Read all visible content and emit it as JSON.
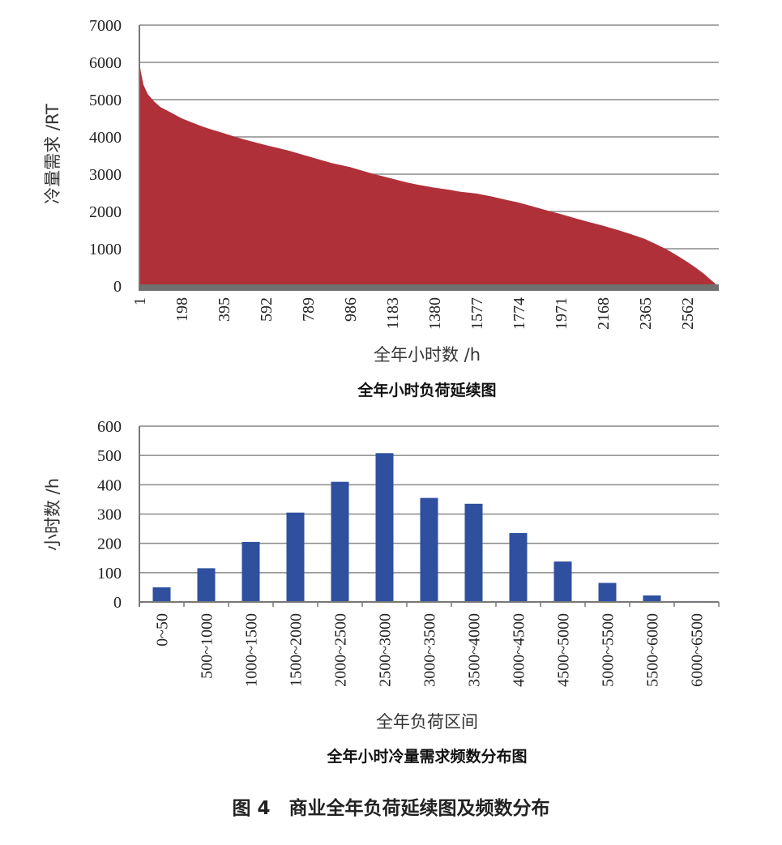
{
  "caption": "图 4　商业全年负荷延续图及频数分布",
  "chart_data": [
    {
      "type": "area",
      "title": "全年小时负荷延续图",
      "xlabel": "全年小时数 /h",
      "ylabel": "冷量需求 /RT",
      "ylim": [
        0,
        7000
      ],
      "yticks": [
        "0",
        "1000",
        "2000",
        "3000",
        "4000",
        "5000",
        "6000",
        "7000"
      ],
      "xticks": [
        "1",
        "198",
        "395",
        "592",
        "789",
        "986",
        "1183",
        "1380",
        "1577",
        "1774",
        "1971",
        "2168",
        "2365",
        "2562"
      ],
      "xlim": [
        1,
        2710
      ],
      "color": "#b0303a",
      "x": [
        1,
        8,
        20,
        40,
        70,
        100,
        150,
        198,
        250,
        300,
        350,
        395,
        450,
        500,
        592,
        650,
        700,
        789,
        850,
        900,
        986,
        1050,
        1100,
        1183,
        1250,
        1300,
        1380,
        1450,
        1500,
        1577,
        1650,
        1700,
        1774,
        1850,
        1900,
        1971,
        2050,
        2100,
        2168,
        2250,
        2300,
        2365,
        2420,
        2470,
        2520,
        2562,
        2600,
        2640,
        2670,
        2690,
        2700,
        2710
      ],
      "y": [
        6000,
        5750,
        5400,
        5150,
        4950,
        4800,
        4650,
        4500,
        4380,
        4270,
        4180,
        4100,
        4000,
        3920,
        3780,
        3700,
        3630,
        3480,
        3380,
        3300,
        3190,
        3080,
        3000,
        2880,
        2780,
        2720,
        2640,
        2580,
        2530,
        2480,
        2400,
        2330,
        2240,
        2120,
        2040,
        1930,
        1800,
        1720,
        1620,
        1480,
        1390,
        1260,
        1110,
        970,
        800,
        650,
        500,
        330,
        180,
        80,
        20,
        0
      ]
    },
    {
      "type": "bar",
      "title": "全年小时冷量需求频数分布图",
      "xlabel": "全年负荷区间",
      "ylabel": "小时数 /h",
      "ylim": [
        0,
        600
      ],
      "yticks": [
        "0",
        "100",
        "200",
        "300",
        "400",
        "500",
        "600"
      ],
      "color": "#2f4f9f",
      "categories": [
        "0~50",
        "500~1000",
        "1000~1500",
        "1500~2000",
        "2000~2500",
        "2500~3000",
        "3000~3500",
        "3500~4000",
        "4000~4500",
        "4500~5000",
        "5000~5500",
        "5500~6000",
        "6000~6500"
      ],
      "values": [
        50,
        115,
        205,
        305,
        410,
        508,
        355,
        335,
        235,
        138,
        65,
        22,
        3
      ]
    }
  ]
}
